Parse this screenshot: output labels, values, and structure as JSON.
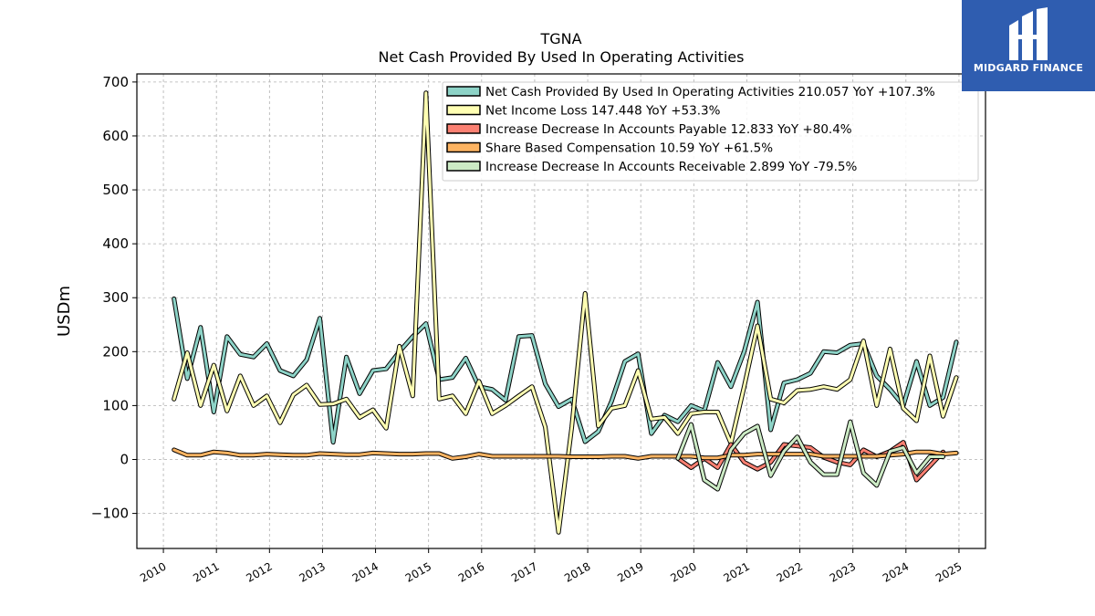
{
  "brand": {
    "name": "MIDGARD FINANCE",
    "color": "#2f5db0"
  },
  "chart_data": {
    "type": "line",
    "title": "TGNA",
    "subtitle": "Net Cash Provided By Used In Operating Activities",
    "ylabel": "USDm",
    "xlabel": "",
    "ylim": [
      -165,
      715
    ],
    "xlim": [
      2009.5,
      2025.5
    ],
    "yticks": [
      -100,
      0,
      100,
      200,
      300,
      400,
      500,
      600,
      700
    ],
    "ytick_labels": [
      "−100",
      "0",
      "100",
      "200",
      "300",
      "400",
      "500",
      "600",
      "700"
    ],
    "xticks": [
      2010,
      2011,
      2012,
      2013,
      2014,
      2015,
      2016,
      2017,
      2018,
      2019,
      2020,
      2021,
      2022,
      2023,
      2024,
      2025
    ],
    "xtick_labels": [
      "2010",
      "2011",
      "2012",
      "2013",
      "2014",
      "2015",
      "2016",
      "2017",
      "2018",
      "2019",
      "2020",
      "2021",
      "2022",
      "2023",
      "2024",
      "2025"
    ],
    "grid": true,
    "legend_position": "top-right",
    "series": [
      {
        "name": "Net Cash Provided By Used In Operating Activities",
        "legend": "Net Cash Provided By Used In Operating Activities  210.057 YoY +107.3%",
        "color": "#8dd3c7",
        "start": 2010.2,
        "step": 0.25,
        "values": [
          298,
          150,
          245,
          88,
          228,
          195,
          190,
          215,
          165,
          155,
          185,
          262,
          32,
          190,
          122,
          165,
          168,
          200,
          228,
          252,
          148,
          152,
          188,
          135,
          130,
          110,
          228,
          230,
          140,
          98,
          112,
          33,
          52,
          108,
          182,
          196,
          48,
          82,
          70,
          100,
          90,
          180,
          135,
          200,
          292,
          55,
          142,
          148,
          160,
          200,
          198,
          212,
          215,
          155,
          130,
          100,
          182,
          100,
          115,
          218
        ]
      },
      {
        "name": "Net Income Loss",
        "legend": "Net Income Loss  147.448 YoY +53.3%",
        "color": "#ffffb3",
        "start": 2010.2,
        "step": 0.25,
        "values": [
          112,
          198,
          100,
          175,
          90,
          155,
          100,
          118,
          68,
          120,
          138,
          102,
          103,
          112,
          78,
          92,
          58,
          210,
          118,
          680,
          112,
          118,
          85,
          145,
          85,
          100,
          118,
          135,
          60,
          -135,
          60,
          308,
          62,
          95,
          100,
          165,
          75,
          78,
          48,
          85,
          88,
          88,
          30,
          135,
          248,
          112,
          105,
          128,
          130,
          135,
          130,
          148,
          220,
          100,
          205,
          95,
          72,
          192,
          80,
          152
        ]
      },
      {
        "name": "Increase Decrease In Accounts Payable",
        "legend": "Increase Decrease In Accounts Payable  12.833 YoY +80.4%",
        "color": "#fb8072",
        "start": 2019.7,
        "step": 0.25,
        "values": [
          2,
          -15,
          2,
          -15,
          28,
          -5,
          -18,
          -5,
          28,
          25,
          22,
          4,
          -5,
          -10,
          18,
          5,
          15,
          32,
          -38,
          -12,
          14
        ]
      },
      {
        "name": "Share Based Compensation",
        "legend": "Share Based Compensation  10.59 YoY +61.5%",
        "color": "#fdb462",
        "start": 2010.2,
        "step": 0.25,
        "values": [
          18,
          8,
          8,
          14,
          12,
          8,
          8,
          10,
          9,
          8,
          8,
          11,
          10,
          9,
          9,
          12,
          11,
          10,
          10,
          11,
          11,
          2,
          5,
          10,
          6,
          6,
          6,
          6,
          6,
          6,
          5,
          5,
          5,
          6,
          6,
          2,
          6,
          6,
          6,
          6,
          3,
          3,
          8,
          8,
          10,
          10,
          10,
          10,
          10,
          6,
          6,
          6,
          6,
          6,
          8,
          10,
          14,
          14,
          10,
          12
        ]
      },
      {
        "name": "Increase Decrease In Accounts Receivable",
        "legend": "Increase Decrease In Accounts Receivable  2.899 YoY -79.5%",
        "color": "#ccebc5",
        "start": 2019.7,
        "step": 0.25,
        "values": [
          2,
          65,
          -38,
          -55,
          18,
          48,
          62,
          -30,
          15,
          42,
          -5,
          -28,
          -28,
          70,
          -25,
          -48,
          15,
          22,
          -25,
          5,
          5
        ]
      }
    ]
  }
}
